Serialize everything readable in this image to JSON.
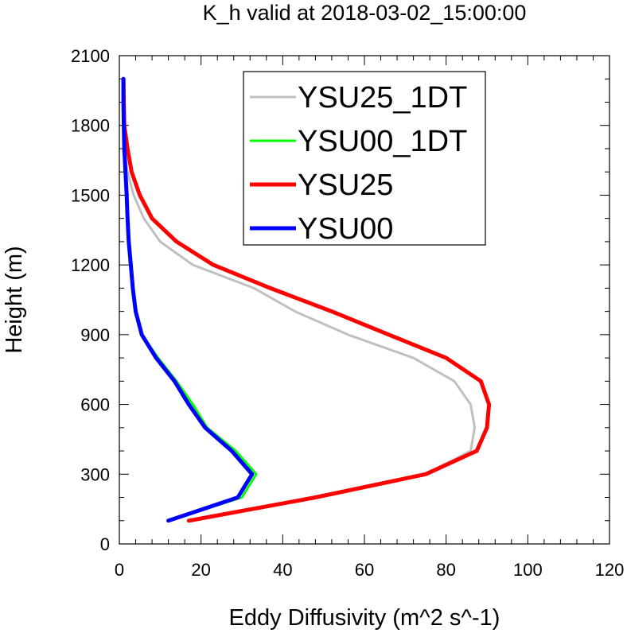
{
  "chart_data": {
    "type": "line",
    "title": "K_h valid at 2018-03-02_15:00:00",
    "xlabel": "Eddy Diffusivity (m^2 s^-1)",
    "ylabel": "Height (m)",
    "xlim": [
      0,
      120
    ],
    "ylim": [
      0,
      2100
    ],
    "xticks": [
      0,
      20,
      40,
      60,
      80,
      100,
      120
    ],
    "yticks": [
      0,
      300,
      600,
      900,
      1200,
      1500,
      1800,
      2100
    ],
    "legend_position": "top-right",
    "grid": false,
    "series": [
      {
        "name": "YSU25_1DT",
        "color": "#c0c0c0",
        "width": "thin",
        "points": [
          [
            17.5,
            100
          ],
          [
            47,
            200
          ],
          [
            75,
            300
          ],
          [
            86,
            400
          ],
          [
            87,
            500
          ],
          [
            86,
            600
          ],
          [
            82,
            700
          ],
          [
            72,
            800
          ],
          [
            56,
            900
          ],
          [
            43,
            1000
          ],
          [
            33,
            1100
          ],
          [
            18,
            1200
          ],
          [
            10,
            1300
          ],
          [
            6,
            1400
          ],
          [
            3.5,
            1500
          ],
          [
            2,
            1600
          ],
          [
            1.2,
            1700
          ],
          [
            1,
            1800
          ],
          [
            1,
            1900
          ],
          [
            1,
            2000
          ]
        ]
      },
      {
        "name": "YSU00_1DT",
        "color": "#00ff00",
        "width": "thin",
        "points": [
          [
            12,
            100
          ],
          [
            30,
            200
          ],
          [
            33.5,
            300
          ],
          [
            28.5,
            400
          ],
          [
            21.5,
            500
          ],
          [
            18,
            600
          ],
          [
            14,
            700
          ],
          [
            9.5,
            800
          ],
          [
            5.5,
            900
          ],
          [
            4,
            1000
          ],
          [
            3.3,
            1100
          ],
          [
            2.8,
            1200
          ],
          [
            2.3,
            1300
          ],
          [
            2,
            1400
          ],
          [
            1.8,
            1500
          ],
          [
            1.5,
            1600
          ],
          [
            1.2,
            1700
          ],
          [
            1.1,
            1800
          ],
          [
            1,
            1900
          ],
          [
            1,
            2000
          ]
        ]
      },
      {
        "name": "YSU25",
        "color": "#ff0000",
        "width": "thick",
        "points": [
          [
            17,
            100
          ],
          [
            48,
            200
          ],
          [
            75,
            300
          ],
          [
            87.5,
            400
          ],
          [
            90,
            500
          ],
          [
            90.5,
            600
          ],
          [
            88.5,
            700
          ],
          [
            80,
            800
          ],
          [
            66,
            900
          ],
          [
            52,
            1000
          ],
          [
            37,
            1100
          ],
          [
            23,
            1200
          ],
          [
            14,
            1300
          ],
          [
            8,
            1400
          ],
          [
            5,
            1500
          ],
          [
            3,
            1600
          ],
          [
            2,
            1700
          ],
          [
            1.2,
            1800
          ],
          [
            1.1,
            1900
          ],
          [
            1,
            2000
          ]
        ]
      },
      {
        "name": "YSU00",
        "color": "#0000ff",
        "width": "thick",
        "points": [
          [
            12,
            100
          ],
          [
            29,
            200
          ],
          [
            32.5,
            300
          ],
          [
            27.5,
            400
          ],
          [
            21,
            500
          ],
          [
            17,
            600
          ],
          [
            13.5,
            700
          ],
          [
            9,
            800
          ],
          [
            5.5,
            900
          ],
          [
            4,
            1000
          ],
          [
            3.3,
            1100
          ],
          [
            2.8,
            1200
          ],
          [
            2.3,
            1300
          ],
          [
            2,
            1400
          ],
          [
            1.8,
            1500
          ],
          [
            1.5,
            1600
          ],
          [
            1.2,
            1700
          ],
          [
            1.1,
            1800
          ],
          [
            1,
            1900
          ],
          [
            1,
            2000
          ]
        ]
      }
    ]
  }
}
